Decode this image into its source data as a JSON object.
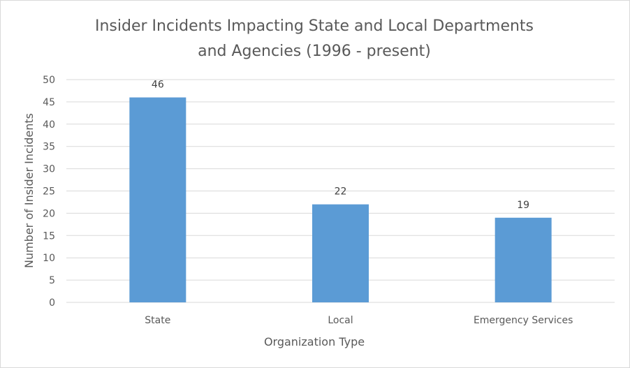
{
  "chart_data": {
    "type": "bar",
    "title": [
      "Insider Incidents Impacting State and Local Departments",
      "and Agencies (1996 - present)"
    ],
    "xlabel": "Organization Type",
    "ylabel": "Number of Insider Incidents",
    "categories": [
      "State",
      "Local",
      "Emergency Services"
    ],
    "values": [
      46,
      22,
      19
    ],
    "ylim": [
      0,
      50
    ],
    "yticks": [
      0,
      5,
      10,
      15,
      20,
      25,
      30,
      35,
      40,
      45,
      50
    ],
    "grid": true,
    "data_labels": true,
    "bar_color": "#5b9bd5"
  }
}
